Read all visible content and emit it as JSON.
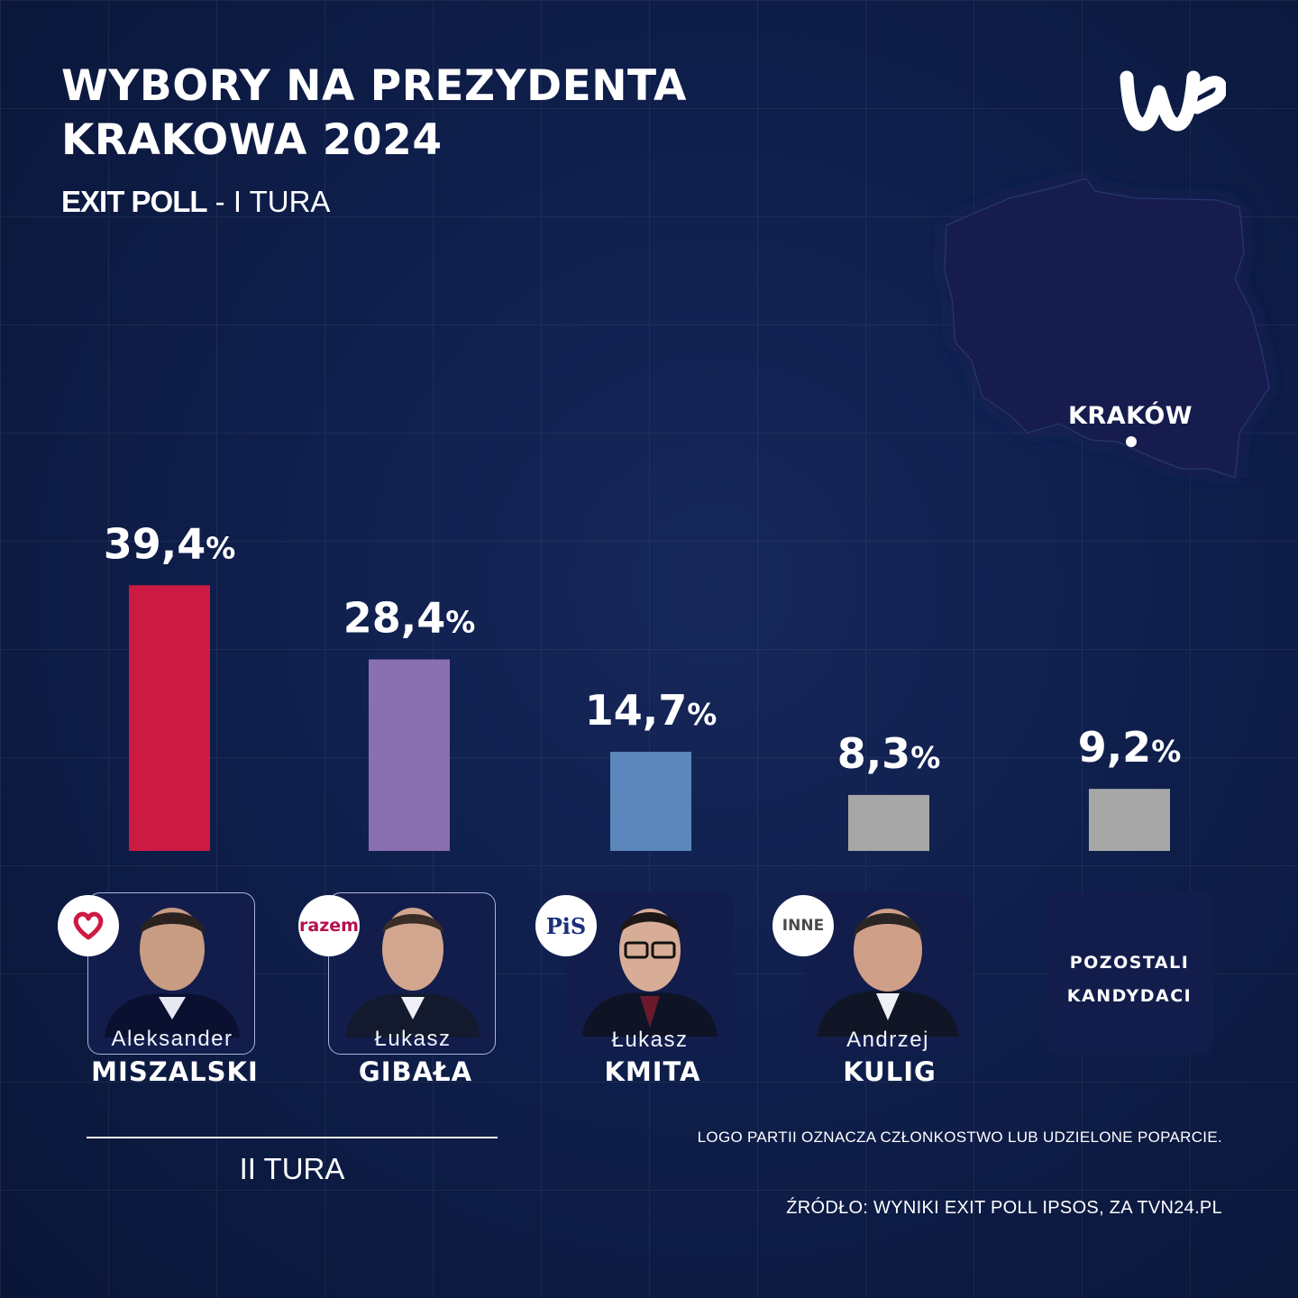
{
  "header": {
    "title_line1": "WYBORY NA PREZYDENTA",
    "title_line2": "KRAKOWA  2024",
    "subtitle_strong": "EXIT POLL",
    "subtitle_rest": " - I TURA"
  },
  "map": {
    "city_label": "KRAKÓW"
  },
  "candidates": [
    {
      "first_name": "Aleksander",
      "last_name": "MISZALSKI",
      "badge": "heart-logo",
      "color": "#cc1a43"
    },
    {
      "first_name": "Łukasz",
      "last_name": "GIBAŁA",
      "badge": "razem",
      "color": "#8a6fb1"
    },
    {
      "first_name": "Łukasz",
      "last_name": "KMITA",
      "badge": "PiS",
      "color": "#5b87bd"
    },
    {
      "first_name": "Andrzej",
      "last_name": "KULIG",
      "badge": "INNE",
      "color": "#a7a7a7"
    }
  ],
  "others": {
    "line1": "POZOSTALI",
    "line2": "KANDYDACI"
  },
  "chart_data": {
    "type": "bar",
    "categories": [
      "Aleksander MISZALSKI",
      "Łukasz GIBAŁA",
      "Łukasz KMITA",
      "Andrzej KULIG",
      "POZOSTALI KANDYDACI"
    ],
    "values": [
      39.4,
      28.4,
      14.7,
      8.3,
      9.2
    ],
    "value_labels": [
      "39,4",
      "28,4",
      "14,7",
      "8,3",
      "9,2"
    ],
    "unit": "%",
    "colors": [
      "#cc1a43",
      "#8a6fb1",
      "#5b87bd",
      "#a7a7a7",
      "#a7a7a7"
    ],
    "title": "WYBORY NA PREZYDENTA KRAKOWA  2024",
    "subtitle": "EXIT POLL - I TURA",
    "grid": false
  },
  "runoff": {
    "label": "II TURA"
  },
  "footer": {
    "note": "LOGO PARTII OZNACZA CZŁONKOSTWO LUB UDZIELONE POPARCIE.",
    "source": "ŹRÓDŁO: WYNIKI EXIT POLL IPSOS, ZA TVN24.PL"
  }
}
